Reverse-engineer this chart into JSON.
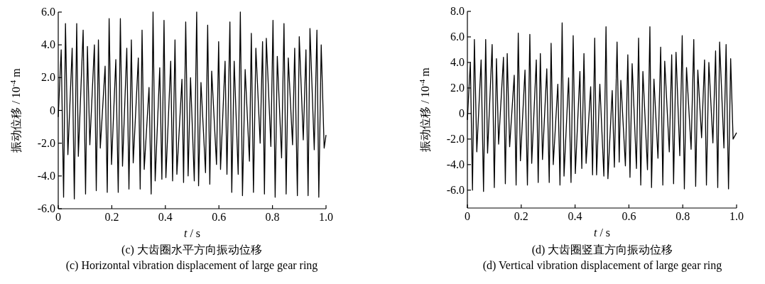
{
  "chart_data": [
    {
      "type": "line",
      "title": "(c) 大齿圈水平方向振动位移",
      "subtitle": "(c) Horizontal vibration displacement of large gear ring",
      "xlabel": "*t* / s",
      "ylabel": "振动位移 / 10$^{-4}$ m",
      "xlim": [
        0,
        1.0
      ],
      "ylim": [
        -6.0,
        6.0
      ],
      "xticks": [
        0,
        {
          "value": 0.2,
          "label": "0.2"
        },
        {
          "value": 0.4,
          "label": "0.4"
        },
        {
          "value": 0.6,
          "label": "0.6"
        },
        {
          "value": 0.8,
          "label": "0.8"
        },
        {
          "value": 1.0,
          "label": "1.0"
        }
      ],
      "yticks": [
        {
          "value": 6,
          "label": "6.0"
        },
        {
          "value": 4,
          "label": "4.0"
        },
        {
          "value": 2,
          "label": "2.0"
        },
        0,
        {
          "value": -2,
          "label": "-2.0"
        },
        {
          "value": -4,
          "label": "-4.0"
        },
        {
          "value": -6,
          "label": "-6.0"
        }
      ],
      "x": [
        0,
        0.011,
        0.02,
        0.027,
        0.036,
        0.052,
        0.06,
        0.069,
        0.075,
        0.093,
        0.102,
        0.109,
        0.118,
        0.135,
        0.142,
        0.15,
        0.157,
        0.175,
        0.183,
        0.19,
        0.199,
        0.215,
        0.224,
        0.232,
        0.24,
        0.256,
        0.264,
        0.273,
        0.28,
        0.299,
        0.306,
        0.313,
        0.321,
        0.339,
        0.347,
        0.354,
        0.362,
        0.379,
        0.387,
        0.395,
        0.402,
        0.42,
        0.427,
        0.436,
        0.443,
        0.462,
        0.468,
        0.476,
        0.485,
        0.494,
        0.508,
        0.517,
        0.524,
        0.533,
        0.55,
        0.558,
        0.566,
        0.573,
        0.591,
        0.599,
        0.606,
        0.623,
        0.63,
        0.641,
        0.648,
        0.657,
        0.672,
        0.68,
        0.688,
        0.698,
        0.714,
        0.721,
        0.729,
        0.738,
        0.754,
        0.763,
        0.77,
        0.777,
        0.794,
        0.802,
        0.81,
        0.818,
        0.834,
        0.843,
        0.851,
        0.859,
        0.875,
        0.883,
        0.893,
        0.9,
        0.915,
        0.925,
        0.933,
        0.94,
        0.956,
        0.966,
        0.973,
        0.982,
        0.993,
        1.0
      ],
      "series": [
        {
          "color": "#000000",
          "values": [
            -0.4,
            3.7,
            -5.3,
            5.3,
            -2.7,
            3.8,
            -5.4,
            5.3,
            -2.8,
            4.9,
            -5.1,
            3.9,
            -2.1,
            4.0,
            -4.9,
            4.3,
            -2.3,
            2.7,
            -5.0,
            5.6,
            -3.3,
            3.1,
            -5.0,
            5.6,
            -3.4,
            3.8,
            -4.8,
            4.3,
            -3.2,
            3.2,
            -4.8,
            4.9,
            -3.6,
            1.4,
            -5.1,
            6.0,
            -4.3,
            2.6,
            -4.2,
            5.5,
            -4.1,
            3.0,
            -4.3,
            4.3,
            -3.9,
            1.9,
            -4.4,
            5.4,
            -4.0,
            2.0,
            -4.3,
            6.0,
            -4.6,
            1.7,
            -3.8,
            5.2,
            -4.5,
            2.4,
            -3.3,
            4.2,
            -3.6,
            3.0,
            -3.9,
            5.4,
            -5.0,
            3.0,
            -3.9,
            6.0,
            -5.2,
            2.5,
            -3.1,
            4.7,
            -5.0,
            3.8,
            -2.0,
            4.2,
            -5.1,
            4.4,
            -2.2,
            5.5,
            -5.3,
            3.3,
            -2.9,
            5.3,
            -5.1,
            3.2,
            -2.1,
            3.8,
            -5.2,
            4.5,
            -1.8,
            3.7,
            -5.2,
            5.0,
            -2.4,
            4.9,
            -5.3,
            4.0,
            -2.3,
            -1.5
          ]
        }
      ]
    },
    {
      "type": "line",
      "title": "(d) 大齿圈竖直方向振动位移",
      "subtitle": "(d) Vertical vibration displacement of large gear ring",
      "xlabel": "*t* / s",
      "ylabel": "振动位移 / 10$^{-4}$ m",
      "xlim": [
        0,
        1.0
      ],
      "ylim": [
        -7.4,
        8.0
      ],
      "xticks": [
        0,
        {
          "value": 0.2,
          "label": "0.2"
        },
        {
          "value": 0.4,
          "label": "0.4"
        },
        {
          "value": 0.6,
          "label": "0.6"
        },
        {
          "value": 0.8,
          "label": "0.8"
        },
        {
          "value": 1.0,
          "label": "1.0"
        }
      ],
      "yticks": [
        {
          "value": 8,
          "label": "8.0"
        },
        {
          "value": 6,
          "label": "6.0"
        },
        {
          "value": 4,
          "label": "4.0"
        },
        {
          "value": 2,
          "label": "2.0"
        },
        0,
        {
          "value": -2,
          "label": "-2.0"
        },
        {
          "value": -4,
          "label": "-4.0"
        },
        {
          "value": -6,
          "label": "-6.0"
        }
      ],
      "x": [
        0,
        0.011,
        0.019,
        0.026,
        0.035,
        0.051,
        0.06,
        0.068,
        0.075,
        0.092,
        0.1,
        0.108,
        0.116,
        0.134,
        0.141,
        0.148,
        0.157,
        0.174,
        0.181,
        0.189,
        0.197,
        0.214,
        0.223,
        0.232,
        0.239,
        0.256,
        0.263,
        0.271,
        0.279,
        0.295,
        0.304,
        0.311,
        0.319,
        0.336,
        0.344,
        0.352,
        0.359,
        0.376,
        0.385,
        0.393,
        0.401,
        0.418,
        0.425,
        0.433,
        0.441,
        0.458,
        0.465,
        0.473,
        0.48,
        0.492,
        0.507,
        0.515,
        0.522,
        0.538,
        0.546,
        0.556,
        0.564,
        0.57,
        0.587,
        0.596,
        0.604,
        0.612,
        0.628,
        0.636,
        0.644,
        0.652,
        0.669,
        0.678,
        0.684,
        0.693,
        0.708,
        0.718,
        0.726,
        0.733,
        0.75,
        0.759,
        0.766,
        0.775,
        0.789,
        0.798,
        0.806,
        0.814,
        0.831,
        0.841,
        0.848,
        0.856,
        0.87,
        0.881,
        0.888,
        0.897,
        0.912,
        0.922,
        0.93,
        0.937,
        0.953,
        0.961,
        0.97,
        0.978,
        0.987,
        1.0
      ],
      "series": [
        {
          "color": "#000000",
          "values": [
            -0.5,
            4.0,
            -6.0,
            5.8,
            -3.0,
            4.2,
            -6.1,
            5.8,
            -3.1,
            5.4,
            -5.8,
            4.3,
            -2.4,
            4.4,
            -5.5,
            4.7,
            -2.6,
            3.0,
            -5.6,
            6.3,
            -3.7,
            3.4,
            -5.6,
            6.2,
            -3.9,
            4.2,
            -5.4,
            4.7,
            -3.6,
            3.5,
            -5.4,
            5.5,
            -4.0,
            2.3,
            -5.6,
            7.1,
            -4.9,
            2.8,
            -5.4,
            6.1,
            -4.7,
            3.3,
            -4.3,
            4.7,
            -3.9,
            2.1,
            -4.8,
            5.9,
            -4.8,
            2.3,
            -4.9,
            6.8,
            -5.1,
            1.8,
            -4.2,
            5.6,
            -3.8,
            2.6,
            -4.1,
            4.6,
            -5.0,
            3.9,
            -4.3,
            5.9,
            -5.6,
            3.3,
            -4.4,
            6.8,
            -5.8,
            2.7,
            -3.5,
            5.2,
            -5.6,
            4.1,
            -3.0,
            4.6,
            -5.5,
            4.8,
            -3.3,
            6.1,
            -5.9,
            3.6,
            -2.8,
            5.8,
            -5.7,
            3.4,
            -1.9,
            4.2,
            -5.6,
            4.0,
            -2.3,
            4.9,
            -5.8,
            5.6,
            -2.7,
            5.4,
            -5.9,
            4.3,
            -2.0,
            -1.5
          ]
        }
      ]
    }
  ]
}
